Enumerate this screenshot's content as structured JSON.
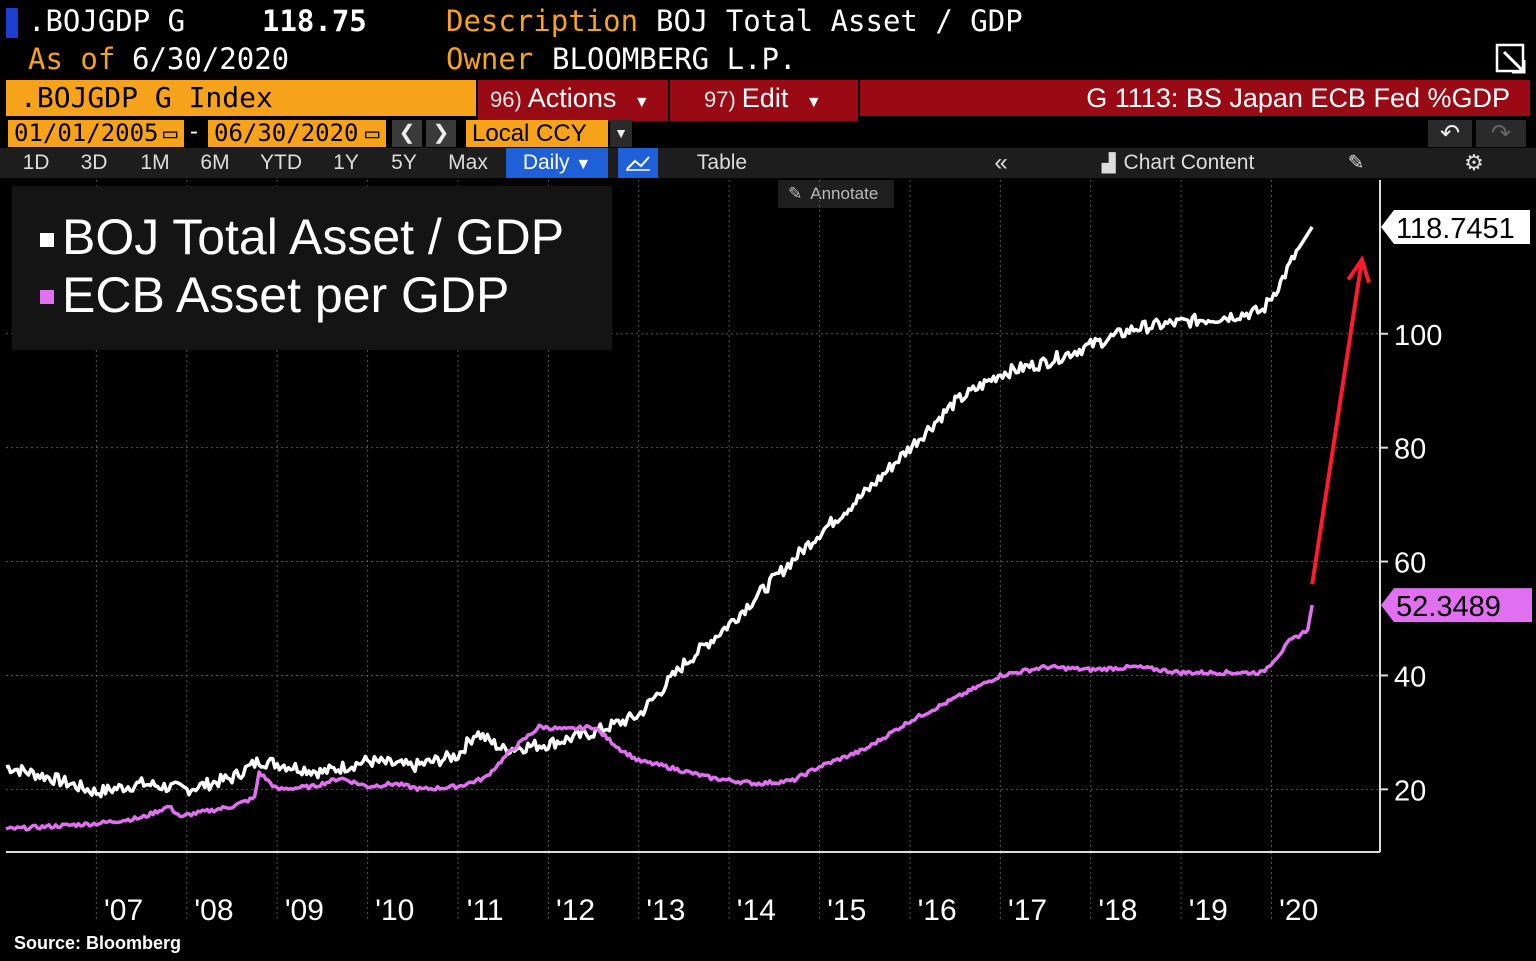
{
  "header": {
    "ticker": ".BOJGDP G",
    "value": "118.75",
    "desc_label": "Description",
    "desc_value": "BOJ Total Asset / GDP",
    "asof_label": "As of",
    "asof_value": "6/30/2020",
    "owner_label": "Owner",
    "owner_value": "BLOOMBERG L.P."
  },
  "toolbar": {
    "index_name": ".BOJGDP G Index",
    "actions_num": "96)",
    "actions_label": "Actions",
    "edit_num": "97)",
    "edit_label": "Edit",
    "chart_title": "G 1113: BS Japan ECB Fed %GDP",
    "start_date": "01/01/2005",
    "end_date": "06/30/2020",
    "currency": "Local CCY",
    "ranges": [
      "1D",
      "3D",
      "1M",
      "6M",
      "YTD",
      "1Y",
      "5Y",
      "Max"
    ],
    "frequency": "Daily",
    "table_label": "Table",
    "chart_content_label": "Chart Content",
    "annotate_label": "Annotate"
  },
  "colors": {
    "orange": "#f7a21b",
    "red": "#9a0a14",
    "blue": "#1f5fd8",
    "boj": "#ffffff",
    "ecb": "#e070f0",
    "arrow": "#ff1a2e"
  },
  "chart_data": {
    "type": "line",
    "title": "G 1113: BS Japan ECB Fed %GDP",
    "xlabel": "",
    "ylabel": "",
    "x_tick_labels": [
      "'07",
      "'08",
      "'09",
      "'10",
      "'11",
      "'12",
      "'13",
      "'14",
      "'15",
      "'16",
      "'17",
      "'18",
      "'19",
      "'20"
    ],
    "y_ticks": [
      20,
      40,
      60,
      80,
      100
    ],
    "ylim": [
      9,
      127
    ],
    "xlim": [
      2006.0,
      2021.2
    ],
    "grid": true,
    "series": [
      {
        "name": "BOJ Total Asset / GDP",
        "last_value": "118.7451",
        "x": [
          2006.0,
          2006.5,
          2007.0,
          2007.5,
          2008.0,
          2008.5,
          2008.8,
          2009.0,
          2009.5,
          2010.0,
          2010.5,
          2011.0,
          2011.2,
          2011.5,
          2012.0,
          2012.5,
          2013.0,
          2013.5,
          2014.0,
          2014.5,
          2015.0,
          2015.5,
          2016.0,
          2016.5,
          2017.0,
          2017.5,
          2018.0,
          2018.5,
          2019.0,
          2019.5,
          2019.9,
          2020.1,
          2020.3,
          2020.45
        ],
        "y": [
          24,
          22,
          19.5,
          21,
          20,
          22,
          25,
          24.5,
          23,
          25,
          24,
          26,
          30,
          27,
          28,
          30,
          33,
          42,
          49,
          57,
          65,
          72,
          80,
          88,
          93,
          95,
          98,
          101,
          102,
          103,
          104,
          109,
          115,
          118.75
        ]
      },
      {
        "name": "ECB Asset per GDP",
        "last_value": "52.3489",
        "x": [
          2006.0,
          2006.5,
          2007.0,
          2007.5,
          2007.8,
          2007.95,
          2008.0,
          2008.5,
          2008.75,
          2008.8,
          2009.0,
          2009.4,
          2009.7,
          2010.0,
          2010.3,
          2010.6,
          2011.0,
          2011.3,
          2011.6,
          2011.9,
          2012.2,
          2012.5,
          2012.8,
          2013.0,
          2013.3,
          2013.8,
          2014.3,
          2014.7,
          2015.0,
          2015.5,
          2016.0,
          2016.5,
          2017.0,
          2017.5,
          2018.0,
          2018.5,
          2019.0,
          2019.5,
          2019.9,
          2020.1,
          2020.2,
          2020.4,
          2020.45
        ],
        "y": [
          13,
          13.5,
          14,
          15,
          17,
          15,
          15.5,
          17,
          18.5,
          23,
          20,
          20.5,
          22,
          20.5,
          21,
          20,
          20.5,
          22,
          27,
          31,
          30.5,
          31,
          27,
          25,
          24,
          22,
          21,
          21.5,
          24,
          27,
          32,
          36,
          40,
          41.5,
          41,
          41.5,
          40.5,
          40.5,
          40.5,
          44,
          46,
          48,
          52.35
        ]
      }
    ]
  },
  "source": "Source: Bloomberg"
}
